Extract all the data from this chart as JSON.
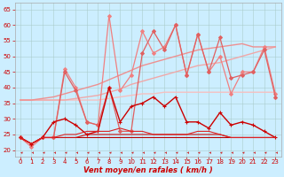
{
  "background_color": "#cceeff",
  "grid_color": "#aacccc",
  "xlabel": "Vent moyen/en rafales ( km/h )",
  "xlim": [
    -0.5,
    23.5
  ],
  "ylim": [
    18,
    67
  ],
  "yticks": [
    20,
    25,
    30,
    35,
    40,
    45,
    50,
    55,
    60,
    65
  ],
  "xticks": [
    0,
    1,
    2,
    3,
    4,
    5,
    6,
    7,
    8,
    9,
    10,
    11,
    12,
    13,
    14,
    15,
    16,
    17,
    18,
    19,
    20,
    21,
    22,
    23
  ],
  "series": [
    {
      "y": [
        36,
        36,
        36,
        36,
        36,
        36,
        36,
        36,
        36.5,
        37,
        37.5,
        38,
        38,
        38.5,
        38.5,
        38.5,
        38.5,
        38.5,
        38.5,
        38.5,
        38.5,
        38.5,
        38.5,
        38.5
      ],
      "color": "#f5c0c0",
      "linewidth": 1.0,
      "marker": null
    },
    {
      "y": [
        36,
        36,
        36,
        36,
        36,
        36.5,
        37,
        37.5,
        38.5,
        39.5,
        41,
        42,
        43,
        44,
        45,
        46,
        47,
        47.5,
        48,
        49,
        50,
        51,
        52,
        53
      ],
      "color": "#f0a8a8",
      "linewidth": 1.0,
      "marker": null
    },
    {
      "y": [
        36,
        36,
        36.5,
        37,
        38,
        39,
        40,
        41,
        42.5,
        44,
        45.5,
        47,
        48,
        49,
        50,
        51,
        52,
        52.5,
        53,
        53.5,
        54,
        53,
        53,
        53
      ],
      "color": "#ee9090",
      "linewidth": 1.0,
      "marker": null
    },
    {
      "y": [
        24,
        21,
        24,
        24,
        46,
        40,
        29,
        28,
        63,
        39,
        44,
        58,
        51,
        53,
        60,
        44,
        57,
        45,
        50,
        38,
        45,
        45,
        53,
        38
      ],
      "color": "#f08080",
      "linewidth": 0.9,
      "marker": "D",
      "markersize": 2.0
    },
    {
      "y": [
        24,
        22,
        24,
        24,
        45,
        39,
        29,
        28,
        40,
        26,
        26,
        51,
        58,
        52,
        60,
        44,
        57,
        45,
        56,
        43,
        44,
        45,
        52,
        37
      ],
      "color": "#e06060",
      "linewidth": 0.9,
      "marker": "D",
      "markersize": 2.0
    },
    {
      "y": [
        24,
        22,
        24,
        29,
        30,
        28,
        25,
        26,
        40,
        29,
        34,
        35,
        37,
        34,
        37,
        29,
        29,
        27,
        32,
        28,
        29,
        28,
        26,
        24
      ],
      "color": "#cc0000",
      "linewidth": 1.0,
      "marker": "+",
      "markersize": 3.5
    },
    {
      "y": [
        24,
        22,
        24,
        24,
        24,
        24,
        24,
        24,
        24,
        24,
        24,
        24,
        24,
        24,
        24,
        24,
        24,
        24,
        24,
        24,
        24,
        24,
        24,
        24
      ],
      "color": "#bb0000",
      "linewidth": 0.8,
      "marker": null
    },
    {
      "y": [
        24,
        22,
        24,
        24,
        24,
        24,
        25,
        25,
        25,
        25,
        25,
        25,
        25,
        25,
        25,
        25,
        25,
        25,
        25,
        24,
        24,
        24,
        24,
        24
      ],
      "color": "#cc1111",
      "linewidth": 0.8,
      "marker": null
    },
    {
      "y": [
        24,
        22,
        24,
        24,
        25,
        25,
        26,
        26,
        26,
        27,
        26,
        26,
        25,
        25,
        25,
        25,
        26,
        26,
        25,
        24,
        24,
        24,
        24,
        24
      ],
      "color": "#dd2222",
      "linewidth": 0.8,
      "marker": null
    }
  ],
  "arrow_color": "#cc2222",
  "tick_label_color": "#cc0000",
  "xlabel_color": "#cc0000",
  "ylabel_color": "#cc0000",
  "tick_fontsize": 5,
  "xlabel_fontsize": 6
}
